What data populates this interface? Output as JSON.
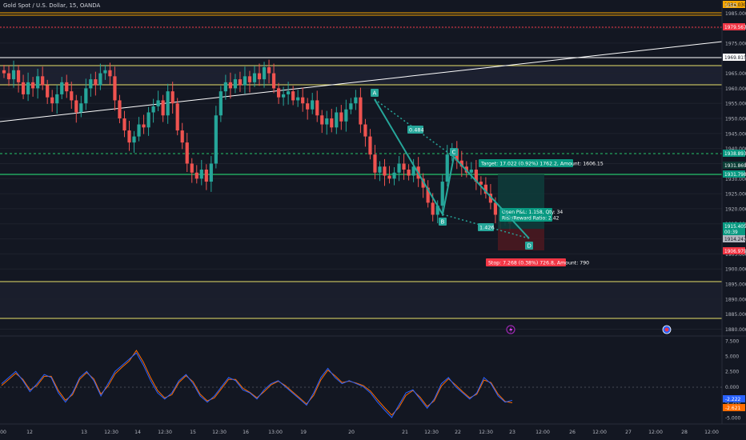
{
  "header": {
    "symbol_title": "Gold Spot / U.S. Dollar, 15, OANDA",
    "currency": "USD"
  },
  "chart_data": [
    {
      "type": "candlestick",
      "title": "Gold Spot / U.S. Dollar, 15, OANDA",
      "ylim": [
        1878,
        1988
      ],
      "price_ticks": [
        1880.0,
        1885.0,
        1890.0,
        1895.0,
        1900.0,
        1905.0,
        1910.0,
        1915.0,
        1920.0,
        1925.0,
        1930.0,
        1935.0,
        1940.0,
        1945.0,
        1950.0,
        1955.0,
        1960.0,
        1965.0,
        1970.0,
        1975.0,
        1980.0,
        1985.0
      ],
      "x_ticks": [
        "00",
        "12",
        "13",
        "12:30",
        "14",
        "12:30",
        "15",
        "12:30",
        "16",
        "13:00",
        "19",
        "20",
        "21",
        "12:30",
        "22",
        "12:30",
        "23",
        "12:00",
        "26",
        "12:00",
        "27",
        "12:00",
        "28",
        "12:00"
      ],
      "closes": [
        1965,
        1963,
        1966,
        1962,
        1958,
        1962,
        1960,
        1964,
        1961,
        1957,
        1955,
        1958,
        1962,
        1959,
        1956,
        1952,
        1955,
        1960,
        1963,
        1961,
        1965,
        1966,
        1964,
        1956,
        1950,
        1946,
        1942,
        1944,
        1948,
        1947,
        1952,
        1954,
        1956,
        1951,
        1959,
        1955,
        1946,
        1942,
        1935,
        1932,
        1930,
        1933,
        1929,
        1935,
        1951,
        1959,
        1962,
        1960,
        1963,
        1961,
        1964,
        1962,
        1965,
        1963,
        1967,
        1965,
        1960,
        1957,
        1958,
        1959,
        1956,
        1957,
        1955,
        1953,
        1956,
        1951,
        1948,
        1950,
        1947,
        1952,
        1949,
        1953,
        1955,
        1957,
        1948,
        1944,
        1938,
        1932,
        1934,
        1931,
        1930,
        1932,
        1935,
        1933,
        1931,
        1934,
        1930,
        1927,
        1922,
        1918,
        1921,
        1929,
        1938,
        1940,
        1936,
        1934,
        1932,
        1933,
        1929,
        1928,
        1925,
        1922,
        1918,
        1916,
        1917,
        1915
      ],
      "price_badges": [
        {
          "label": "1984.030",
          "color": "#f7a600"
        },
        {
          "label": "1979.567",
          "color": "#f23645"
        },
        {
          "label": "1969.815",
          "color": "#ffffff"
        },
        {
          "label": "1938.893",
          "color": "#089981"
        },
        {
          "label": "1931.869",
          "color": "#0b3d36"
        },
        {
          "label": "1931.798",
          "color": "#089981"
        },
        {
          "label": "1915.405",
          "color": "#089981"
        },
        {
          "label": "00:39",
          "color": "#089981"
        },
        {
          "label": "1914.247",
          "color": "#b2b5be"
        },
        {
          "label": "1906.979",
          "color": "#f23645"
        }
      ],
      "pattern_points": [
        "A",
        "B",
        "C",
        "D"
      ],
      "pattern_ratios": [
        "0.484",
        "1.426"
      ],
      "position": {
        "target_label": "Target: 17.022 (0.92%) 1762.2, Amount: 1606.15",
        "stop_label": "Stop: 7.268 (0.38%) 726.8, Amount: 790",
        "pl_line1": "Open P&L: 1.158, Qty: 34",
        "pl_line2": "Risk/Reward Ratio: 2.42"
      }
    },
    {
      "type": "line",
      "ylim": [
        -5.8,
        8.0
      ],
      "y_ticks": [
        7.5,
        5.0,
        2.5,
        0.0,
        -2.5,
        -5.0
      ],
      "series": [
        {
          "color": "#2962ff",
          "last_label": "-2.222"
        },
        {
          "color": "#ff6d00",
          "last_label": "-2.621"
        }
      ],
      "values_blue": [
        0.5,
        1.5,
        2.5,
        1.0,
        -0.8,
        0.5,
        2.0,
        1.5,
        -1.0,
        -2.5,
        -1.0,
        1.5,
        2.5,
        1.0,
        -1.5,
        0.5,
        2.5,
        3.5,
        4.5,
        5.5,
        3.5,
        1.0,
        -1.0,
        -2.0,
        -1.0,
        1.0,
        2.0,
        0.5,
        -1.5,
        -2.5,
        -1.5,
        0.0,
        1.5,
        1.0,
        -0.5,
        -1.0,
        -2.0,
        -0.5,
        0.5,
        1.0,
        0.0,
        -1.0,
        -2.0,
        -3.0,
        -1.0,
        1.5,
        3.0,
        1.5,
        0.5,
        1.0,
        0.5,
        0.0,
        -1.0,
        -2.5,
        -3.8,
        -5.0,
        -3.0,
        -1.0,
        -0.5,
        -2.0,
        -3.5,
        -2.0,
        0.5,
        1.5,
        0.0,
        -1.0,
        -2.0,
        -1.0,
        1.5,
        0.5,
        -1.5,
        -2.5,
        -2.2
      ],
      "values_orange": [
        0.2,
        1.2,
        2.2,
        1.2,
        -0.5,
        0.2,
        1.7,
        1.7,
        -0.6,
        -2.2,
        -1.3,
        1.2,
        2.3,
        1.3,
        -1.2,
        0.1,
        2.1,
        3.2,
        4.2,
        5.9,
        4.0,
        1.5,
        -0.6,
        -1.8,
        -1.3,
        0.7,
        1.8,
        0.8,
        -1.2,
        -2.3,
        -1.8,
        -0.3,
        1.2,
        1.2,
        -0.2,
        -0.9,
        -1.8,
        -0.8,
        0.3,
        0.9,
        0.2,
        -0.8,
        -1.8,
        -2.8,
        -1.4,
        1.1,
        2.7,
        1.8,
        0.7,
        0.9,
        0.6,
        0.2,
        -0.7,
        -2.1,
        -3.4,
        -4.6,
        -3.4,
        -1.4,
        -0.6,
        -1.7,
        -3.2,
        -2.3,
        0.1,
        1.3,
        0.3,
        -0.8,
        -1.8,
        -1.2,
        1.1,
        0.7,
        -1.2,
        -2.4,
        -2.6
      ]
    }
  ]
}
